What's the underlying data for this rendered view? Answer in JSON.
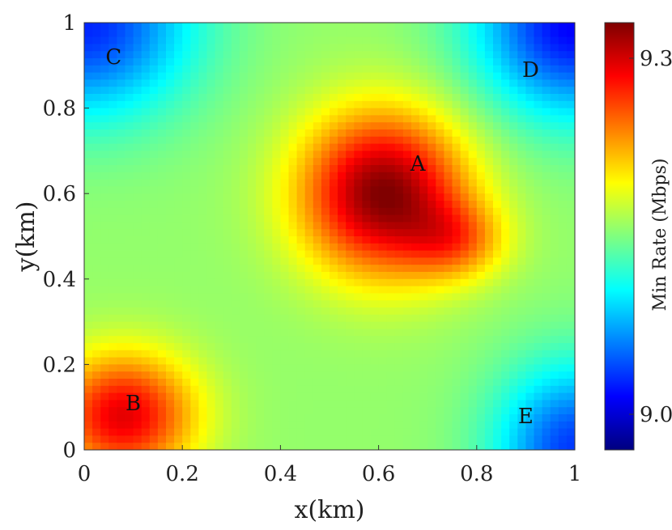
{
  "chart_data": {
    "type": "heatmap",
    "xlabel": "x(km)",
    "ylabel": "y(km)",
    "xlim": [
      0,
      1
    ],
    "ylim": [
      0,
      1
    ],
    "x_ticks": [
      "0",
      "0.2",
      "0.4",
      "0.6",
      "0.8",
      "1"
    ],
    "y_ticks": [
      "0",
      "0.2",
      "0.4",
      "0.6",
      "0.8",
      "1"
    ],
    "colorbar": {
      "label": "Min Rate (Mbps)",
      "range": [
        8.97,
        9.33
      ],
      "ticks": [
        "9.0",
        "9.3"
      ],
      "colormap": "jet"
    },
    "points": [
      {
        "label": "A",
        "x": 0.68,
        "y": 0.67
      },
      {
        "label": "B",
        "x": 0.1,
        "y": 0.11
      },
      {
        "label": "C",
        "x": 0.06,
        "y": 0.92
      },
      {
        "label": "D",
        "x": 0.91,
        "y": 0.89
      },
      {
        "label": "E",
        "x": 0.9,
        "y": 0.08
      }
    ],
    "grid": false
  }
}
